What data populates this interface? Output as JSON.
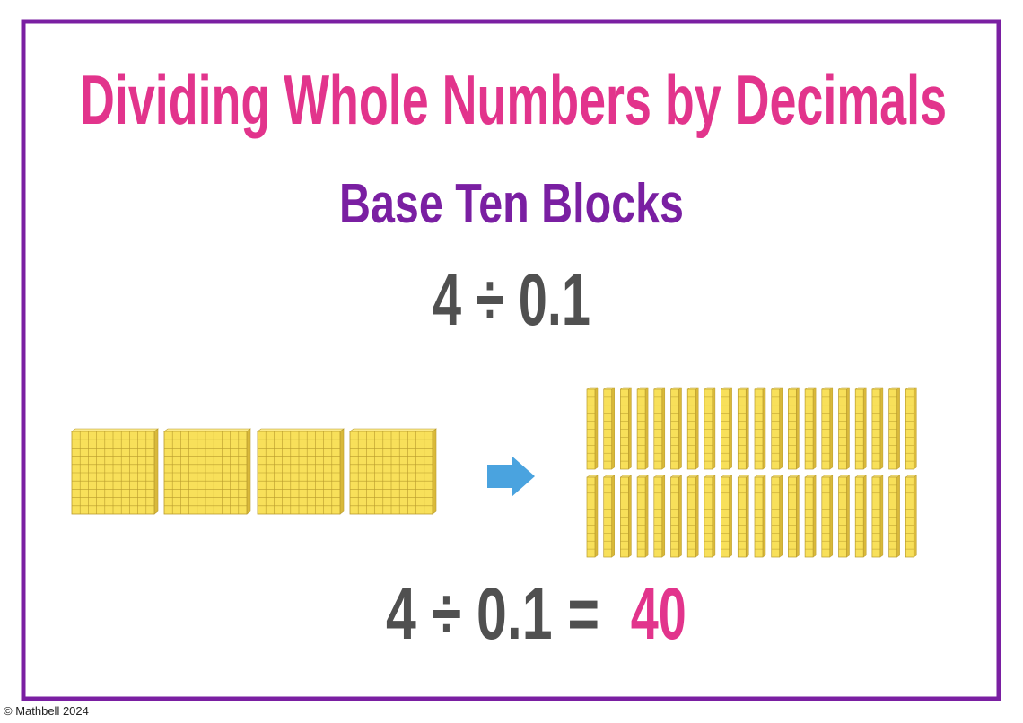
{
  "header": {
    "title": "Dividing Whole Numbers by Decimals",
    "subtitle": "Base Ten Blocks"
  },
  "problem": "4 ÷ 0.1",
  "answer": {
    "equation": "4 ÷ 0.1 =",
    "result": "40"
  },
  "footer": {
    "copyright": "© Mathbell 2024"
  }
}
